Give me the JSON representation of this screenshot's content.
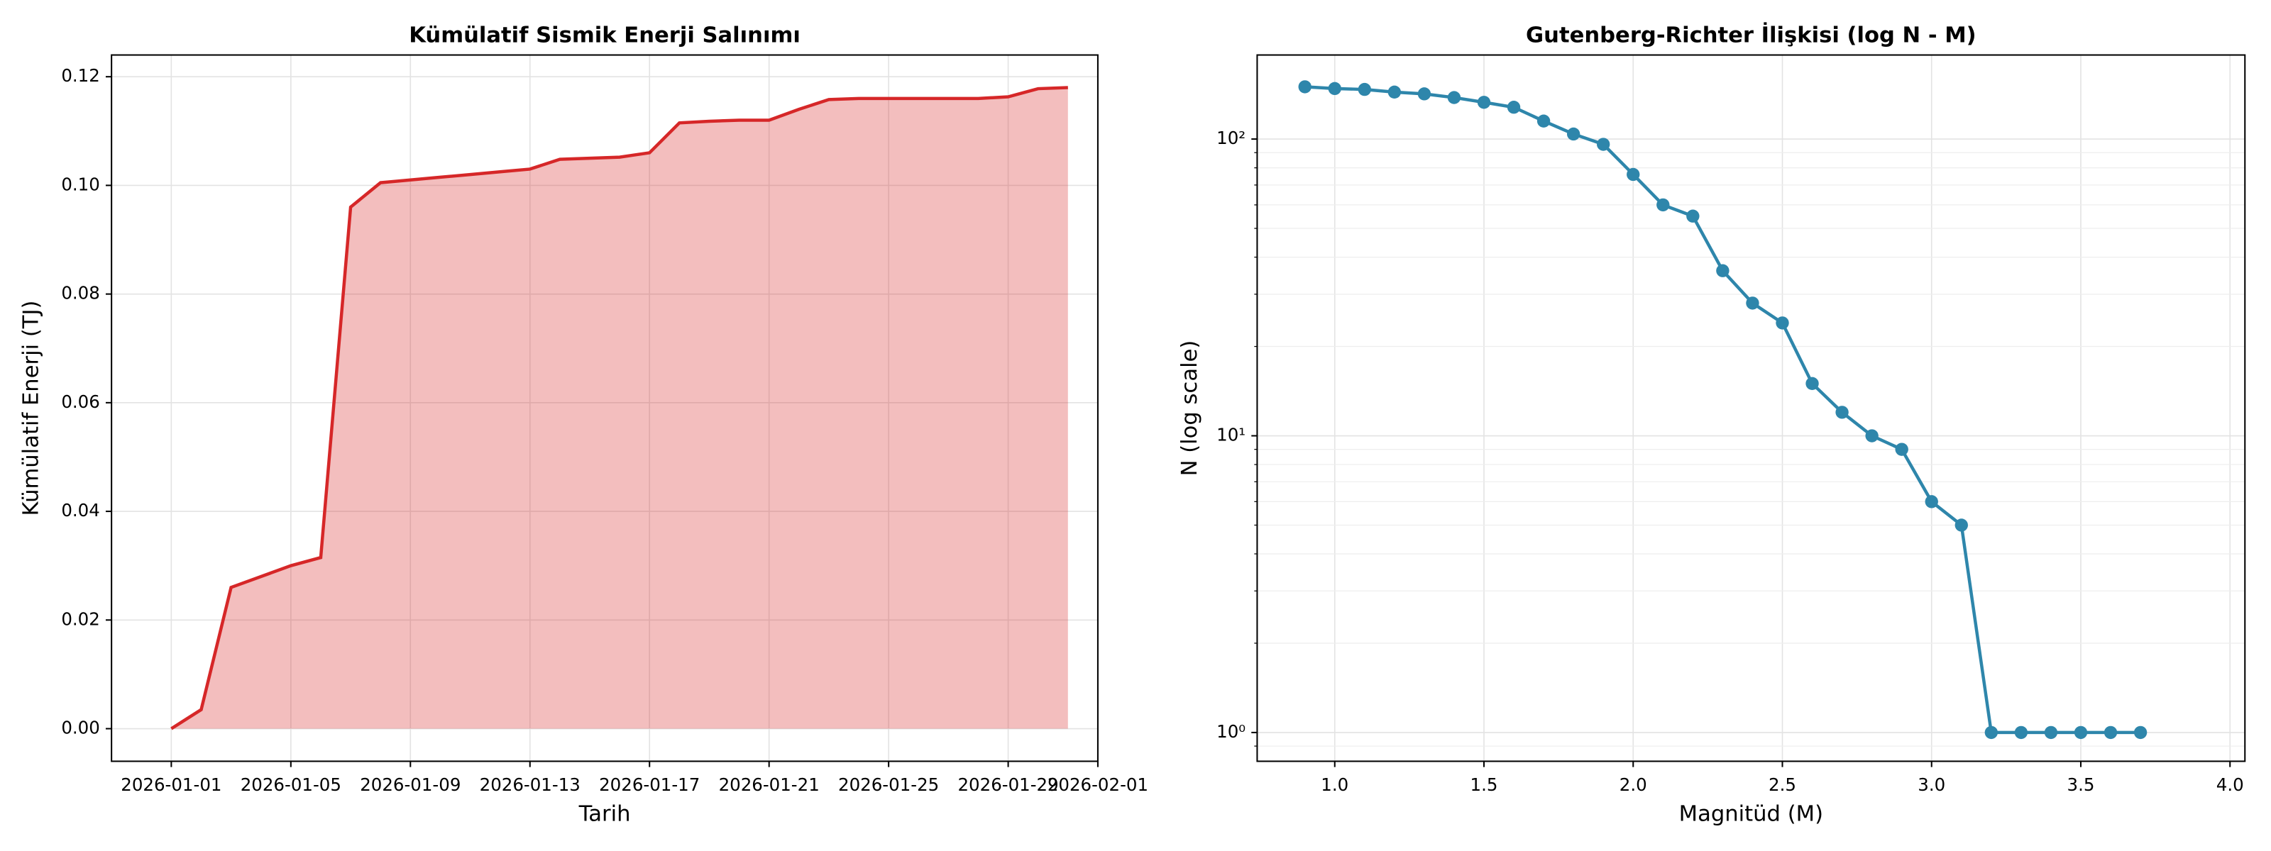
{
  "chart_data": [
    {
      "type": "area",
      "title": "Kümülatif Sismik Enerji Salınımı",
      "xlabel": "Tarih",
      "ylabel": "Kümülatif Enerji (TJ)",
      "x": [
        "2026-01-01",
        "2026-01-02",
        "2026-01-03",
        "2026-01-04",
        "2026-01-05",
        "2026-01-06",
        "2026-01-07",
        "2026-01-08",
        "2026-01-09",
        "2026-01-10",
        "2026-01-11",
        "2026-01-12",
        "2026-01-13",
        "2026-01-14",
        "2026-01-15",
        "2026-01-16",
        "2026-01-17",
        "2026-01-18",
        "2026-01-19",
        "2026-01-20",
        "2026-01-21",
        "2026-01-22",
        "2026-01-23",
        "2026-01-24",
        "2026-01-25",
        "2026-01-26",
        "2026-01-27",
        "2026-01-28",
        "2026-01-29",
        "2026-01-30",
        "2026-01-31"
      ],
      "series": [
        {
          "name": "Kümülatif Enerji",
          "color": "#d62728",
          "values": [
            0,
            0.0035,
            0.026,
            0.028,
            0.03,
            0.0315,
            0.096,
            0.1005,
            0.101,
            0.1015,
            0.102,
            0.1025,
            0.103,
            0.1048,
            0.105,
            0.1052,
            0.106,
            0.1115,
            0.1118,
            0.112,
            0.112,
            0.114,
            0.1158,
            0.116,
            0.116,
            0.116,
            0.116,
            0.116,
            0.1163,
            0.1178,
            0.118
          ]
        }
      ],
      "xlim": [
        "2025-12-30",
        "2026-02-01"
      ],
      "xticks": [
        "2026-01-01",
        "2026-01-05",
        "2026-01-09",
        "2026-01-13",
        "2026-01-17",
        "2026-01-21",
        "2026-01-25",
        "2026-01-29",
        "2026-02-01"
      ],
      "ylim": [
        -0.006,
        0.124
      ],
      "yticks": [
        {
          "value": 0,
          "label": "0.00"
        },
        {
          "value": 0.02,
          "label": "0.02"
        },
        {
          "value": 0.04,
          "label": "0.04"
        },
        {
          "value": 0.06,
          "label": "0.06"
        },
        {
          "value": 0.08,
          "label": "0.08"
        },
        {
          "value": 0.1,
          "label": "0.10"
        },
        {
          "value": 0.12,
          "label": "0.12"
        }
      ],
      "grid": true
    },
    {
      "type": "line",
      "title": "Gutenberg-Richter İlişkisi (log N - M)",
      "xlabel": "Magnitüd (M)",
      "ylabel": "N (log scale)",
      "x": [
        0.9,
        1.0,
        1.1,
        1.2,
        1.3,
        1.4,
        1.5,
        1.6,
        1.7,
        1.8,
        1.9,
        2.0,
        2.1,
        2.2,
        2.3,
        2.4,
        2.5,
        2.6,
        2.7,
        2.8,
        2.9,
        3.0,
        3.1,
        3.2,
        3.3,
        3.4,
        3.5,
        3.6,
        3.7
      ],
      "series": [
        {
          "name": "N",
          "color": "#2e86ab",
          "values": [
            150,
            148,
            147,
            144,
            142,
            138,
            133,
            128,
            115,
            104,
            96,
            76,
            60,
            55,
            36,
            28,
            24,
            15,
            12,
            10,
            9,
            6,
            5,
            1,
            1,
            1,
            1,
            1,
            1
          ]
        }
      ],
      "xlim": [
        0.74,
        4.05
      ],
      "xticks": [
        {
          "value": 1,
          "label": "1.0"
        },
        {
          "value": 1.5,
          "label": "1.5"
        },
        {
          "value": 2,
          "label": "2.0"
        },
        {
          "value": 2.5,
          "label": "2.5"
        },
        {
          "value": 3,
          "label": "3.0"
        },
        {
          "value": 3.5,
          "label": "3.5"
        },
        {
          "value": 4,
          "label": "4.0"
        }
      ],
      "ylim": [
        0.8,
        192
      ],
      "log_y": true,
      "yticks": [
        {
          "value": 1,
          "label": "10⁰"
        },
        {
          "value": 10,
          "label": "10¹"
        },
        {
          "value": 100,
          "label": "10²"
        }
      ],
      "grid": true
    }
  ]
}
